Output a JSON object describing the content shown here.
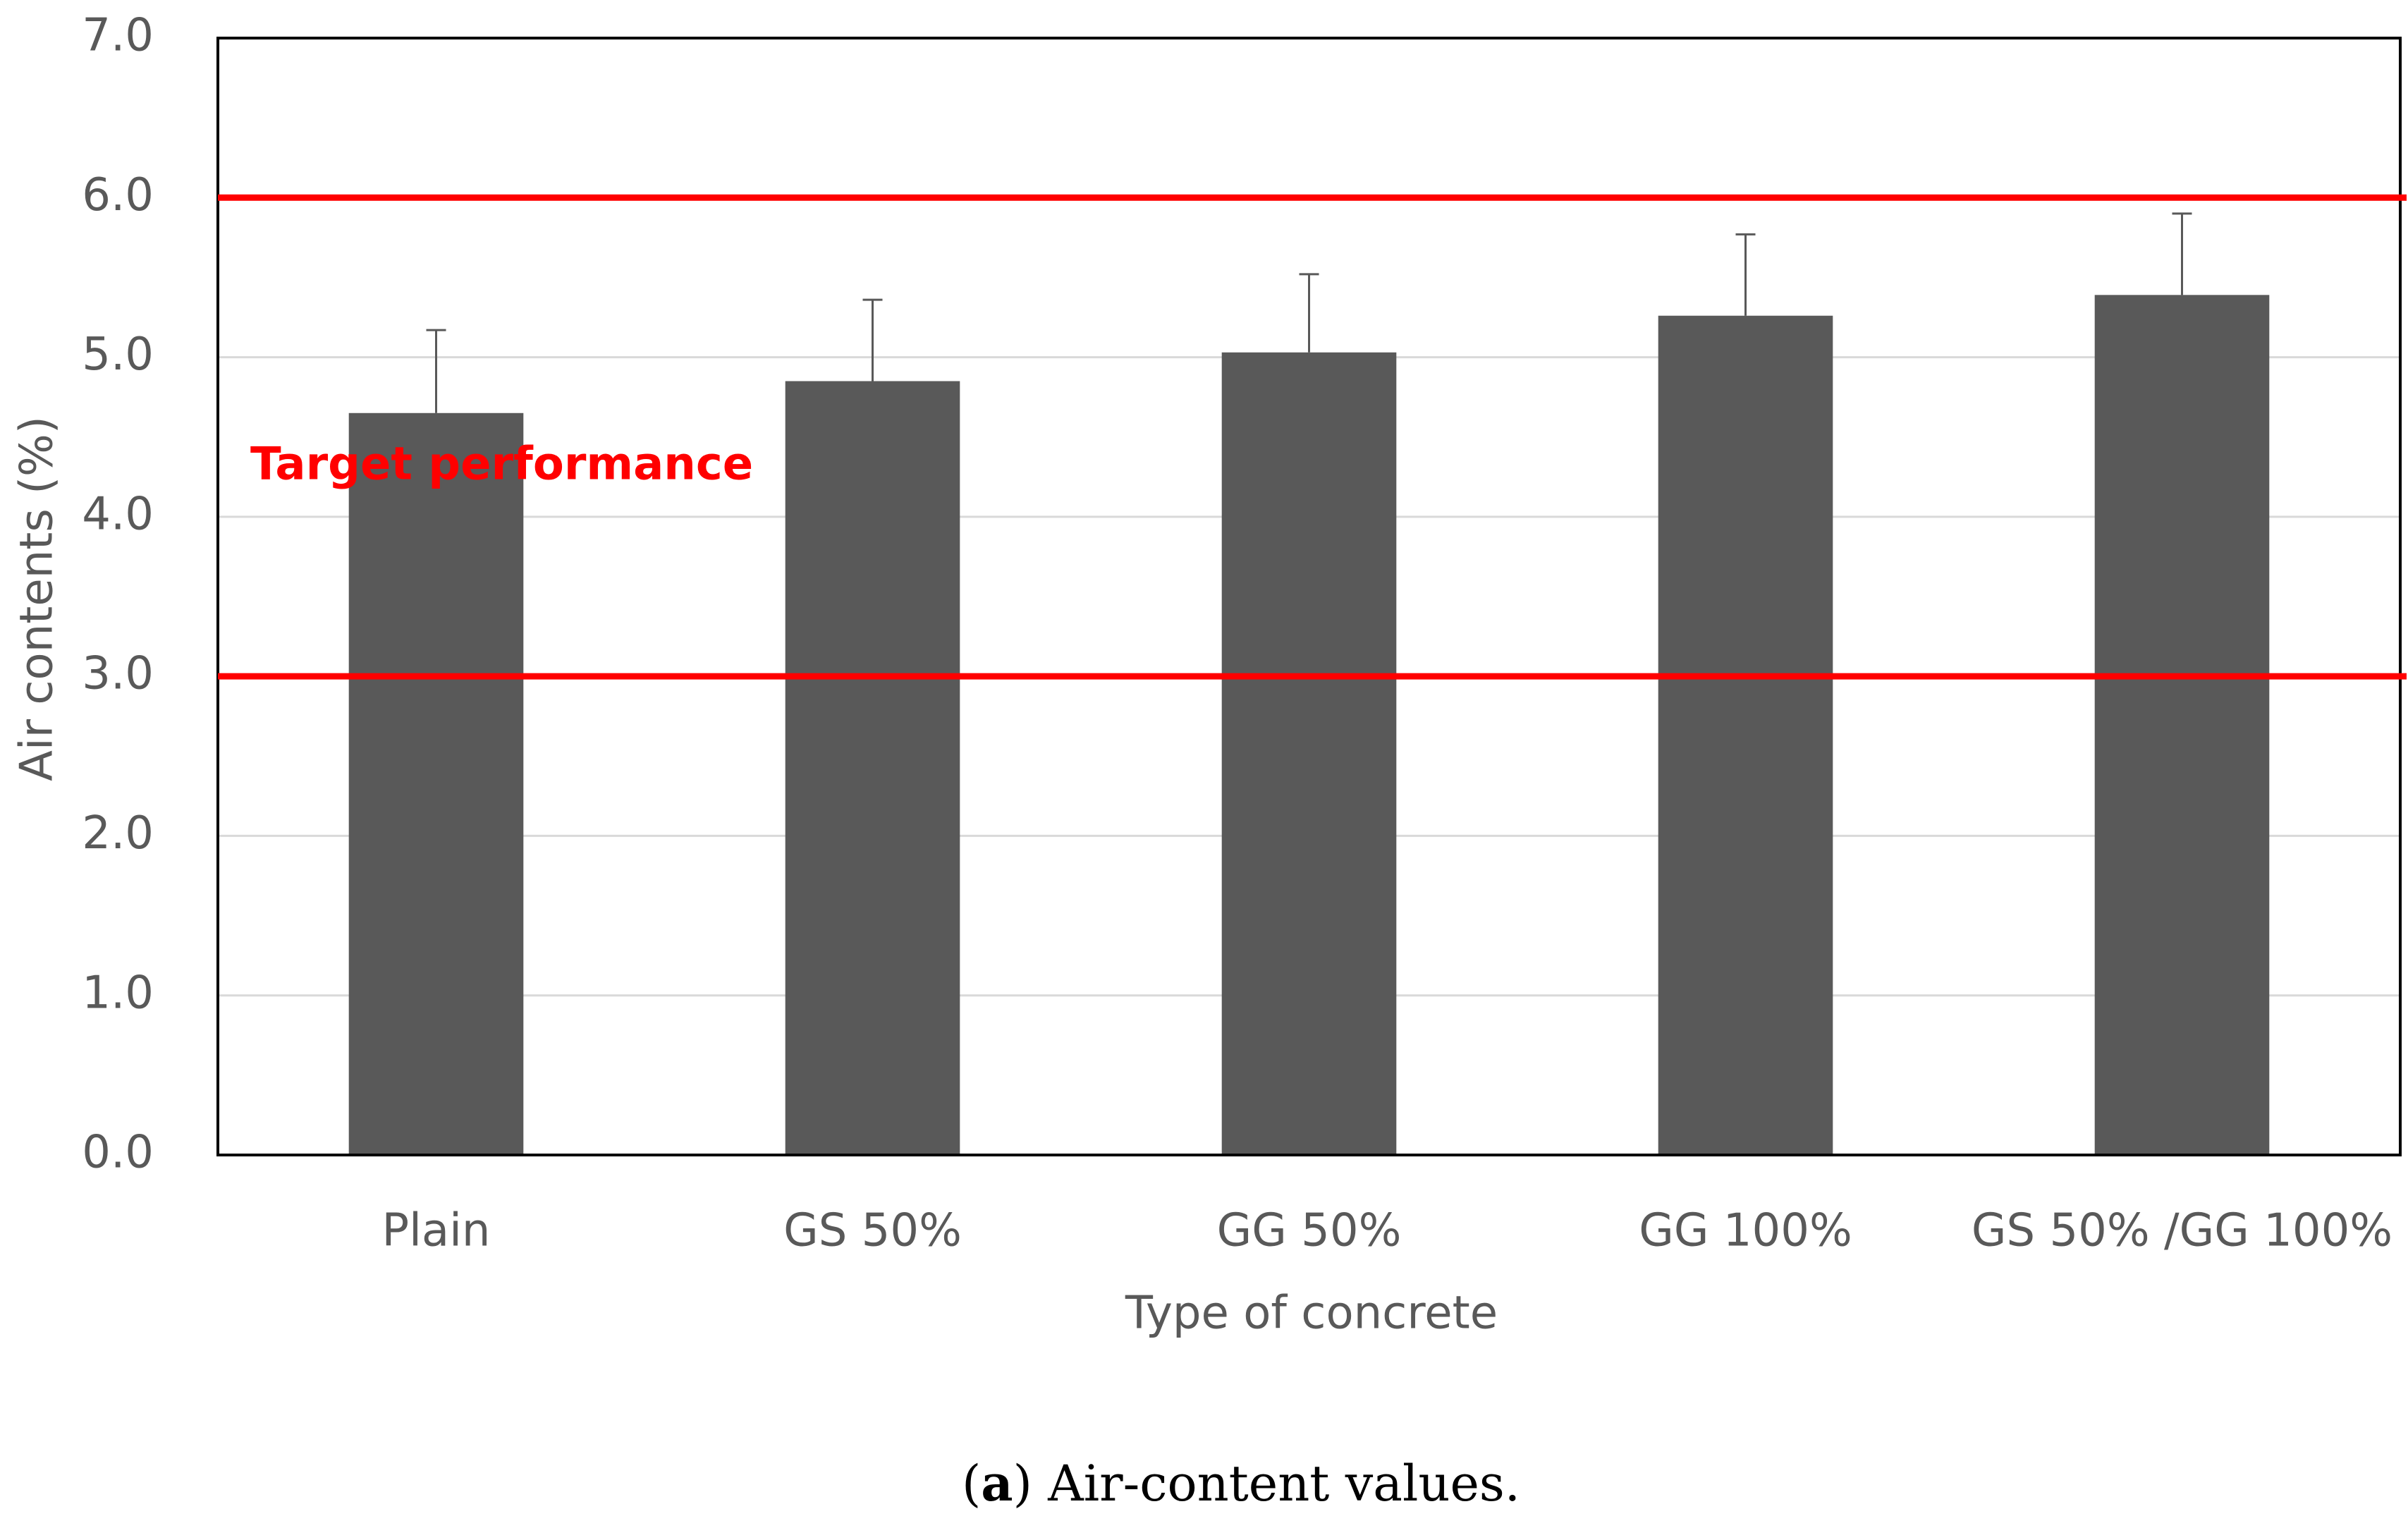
{
  "chart_data": {
    "type": "bar",
    "x_label": "Type of concrete",
    "y_label": "Air contents (%)",
    "categories": [
      "Plain",
      "GS 50%",
      "GG 50%",
      "GG 100%",
      "GS 50% /GG 100%"
    ],
    "series": [
      {
        "values": [
          4.65,
          4.85,
          5.03,
          5.26,
          5.39
        ],
        "errors": [
          0.52,
          0.51,
          0.49,
          0.51,
          0.51
        ],
        "color": "#595959"
      }
    ],
    "ylim": [
      0,
      7
    ],
    "yticks": [
      {
        "value": 0,
        "label": "0.0"
      },
      {
        "value": 1,
        "label": "1.0"
      },
      {
        "value": 2,
        "label": "2.0"
      },
      {
        "value": 3,
        "label": "3.0"
      },
      {
        "value": 4,
        "label": "4.0"
      },
      {
        "value": 5,
        "label": "5.0"
      },
      {
        "value": 6,
        "label": "6.0"
      },
      {
        "value": 7,
        "label": "7.0"
      }
    ],
    "grid": true,
    "reference_lines": [
      {
        "value": 6,
        "color": "#ff0000"
      },
      {
        "value": 3,
        "color": "#ff0000"
      }
    ],
    "annotation": {
      "text": "Target performance",
      "color": "#ff0000"
    },
    "caption": [
      "(",
      "a",
      ") Air-content values."
    ]
  }
}
